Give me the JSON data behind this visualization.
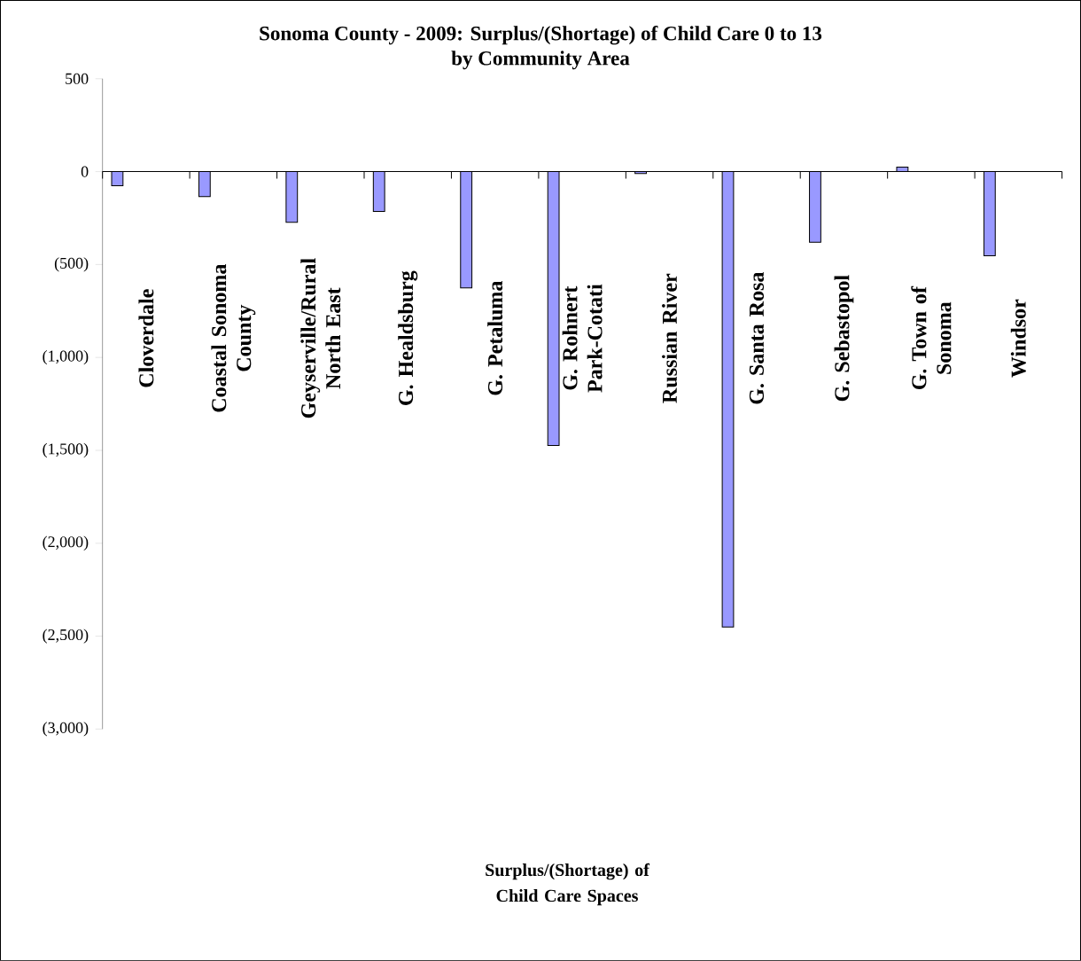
{
  "chart_data": {
    "type": "bar",
    "title": "Sonoma County - 2009: Surplus/(Shortage) of Child Care 0 to 13",
    "subtitle": "by Community Area",
    "annotations": [
      "Surplus/(Shortage) of Child Care Spaces"
    ],
    "categories": [
      "Cloverdale",
      "Coastal Sonoma County",
      "Geyserville/Rural North East",
      "G.  Healdsburg",
      "G.  Petaluma",
      "G.  Rohnert Park-Cotati",
      "Russian River",
      "G.  Santa Rosa",
      "G.  Sebastopol",
      "G.  Town of Sonoma",
      "Windsor"
    ],
    "values": [
      -76,
      -135,
      -273,
      -214,
      -626,
      -1474,
      -10,
      -2451,
      -380,
      24,
      -453
    ],
    "color": "#9999ff",
    "ylim": [
      -3000,
      500
    ],
    "yticks": [
      500,
      0,
      {
        "value": -500,
        "label": "(500)"
      },
      {
        "value": -1000,
        "label": "(1,000)"
      },
      {
        "value": -1500,
        "label": "(1,500)"
      },
      {
        "value": -2000,
        "label": "(2,000)"
      },
      {
        "value": -2500,
        "label": "(2,500)"
      },
      {
        "value": -3000,
        "label": "(3,000)"
      }
    ]
  }
}
